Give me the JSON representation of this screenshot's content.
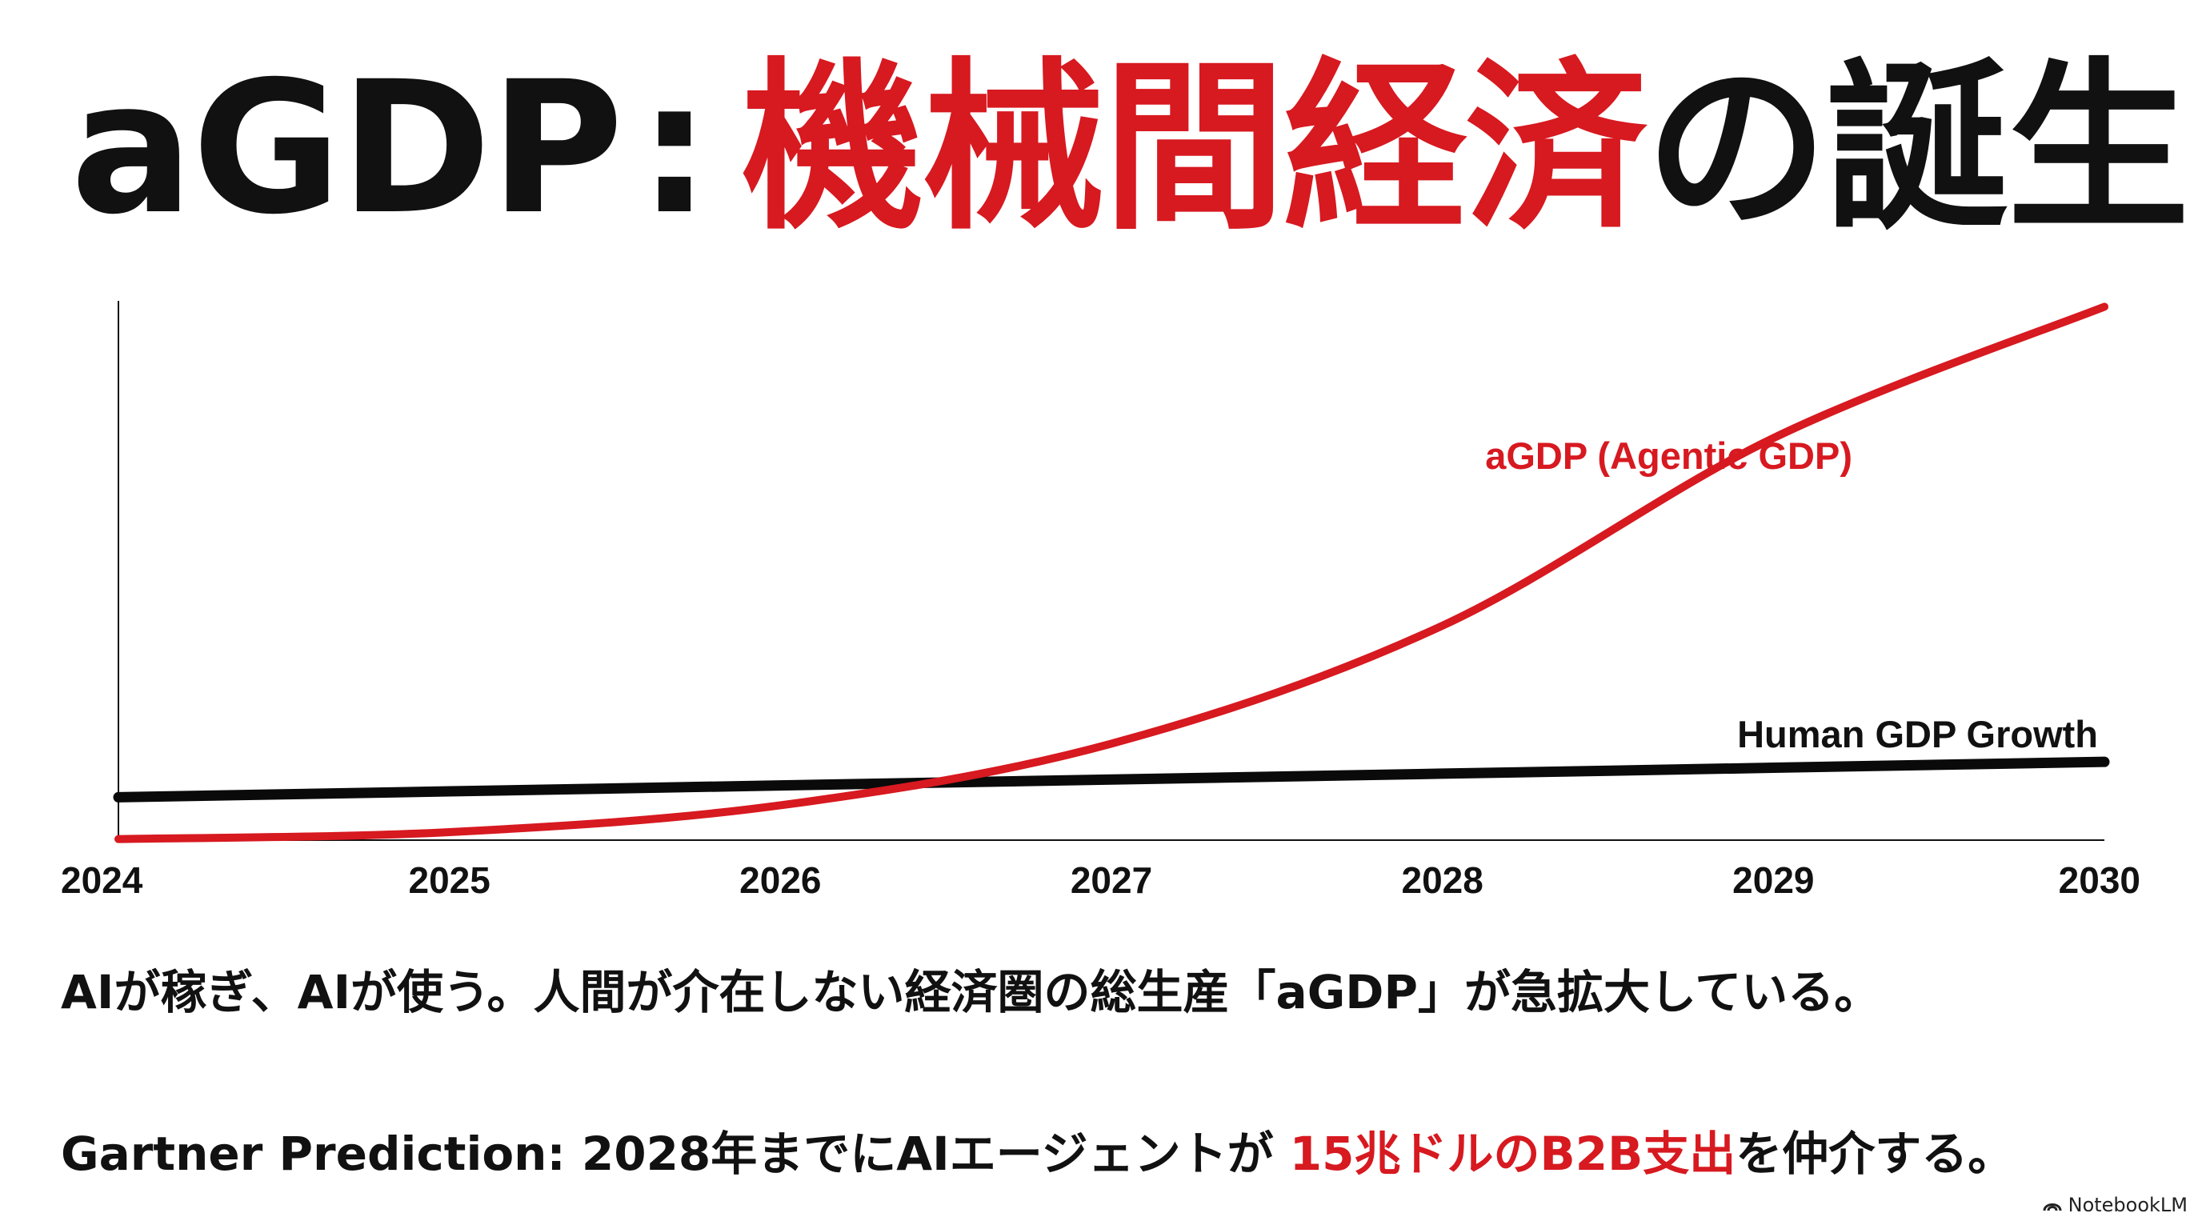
{
  "title": {
    "prefix": "aGDP",
    "colon": ":",
    "highlight": "機械間経済",
    "suffix": "の誕生"
  },
  "colors": {
    "accent": "#d71920",
    "text": "#111111",
    "human_line": "#0a0a0a"
  },
  "chart_data": {
    "type": "line",
    "title": "",
    "xlabel": "",
    "ylabel": "",
    "x": [
      "2024",
      "2025",
      "2026",
      "2027",
      "2028",
      "2029",
      "2030"
    ],
    "ylim": [
      0,
      100
    ],
    "grid": false,
    "series": [
      {
        "name": "aGDP (Agentic GDP)",
        "color": "#d71920",
        "values": [
          0.2,
          1.5,
          6.5,
          18,
          40,
          75,
          99.5
        ]
      },
      {
        "name": "Human GDP Growth",
        "color": "#0a0a0a",
        "values": [
          8,
          9.1,
          10.2,
          11.3,
          12.4,
          13.5,
          14.6
        ]
      }
    ]
  },
  "captions": {
    "line1": "AIが稼ぎ、AIが使う。人間が介在しない経済圏の総生産「aGDP」が急拡大している。",
    "line2_prefix": "Gartner Prediction: 2028年までにAIエージェントが ",
    "line2_highlight": "15兆ドルのB2B支出",
    "line2_suffix": "を仲介する。"
  },
  "brand": {
    "label": "NotebookLM",
    "icon": "notebooklm-icon"
  }
}
